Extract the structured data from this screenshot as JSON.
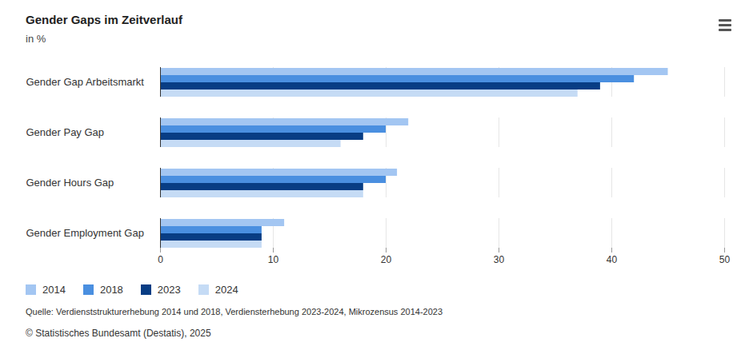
{
  "chart_data": {
    "type": "bar",
    "title": "Gender Gaps im Zeitverlauf",
    "subtitle": "in %",
    "orientation": "horizontal",
    "categories": [
      "Gender Gap Arbeitsmarkt",
      "Gender Pay Gap",
      "Gender Hours Gap",
      "Gender Employment Gap"
    ],
    "series": [
      {
        "name": "2014",
        "color": "#a3c6f2",
        "values": [
          45,
          22,
          21,
          11
        ]
      },
      {
        "name": "2018",
        "color": "#4a8fe0",
        "values": [
          42,
          20,
          20,
          9
        ]
      },
      {
        "name": "2023",
        "color": "#083d84",
        "values": [
          39,
          18,
          18,
          9
        ]
      },
      {
        "name": "2024",
        "color": "#c5dbf5",
        "values": [
          37,
          16,
          18,
          9
        ]
      }
    ],
    "xlim": [
      0,
      50
    ],
    "xticks": [
      0,
      10,
      20,
      30,
      40,
      50
    ],
    "grid": true,
    "legend": "bottom",
    "source": "Quelle: Verdienststrukturerhebung 2014 und 2018, Verdiensterhebung 2023-2024, Mikrozensus 2014-2023",
    "copyright": "© Statistisches Bundesamt (Destatis), 2025"
  }
}
